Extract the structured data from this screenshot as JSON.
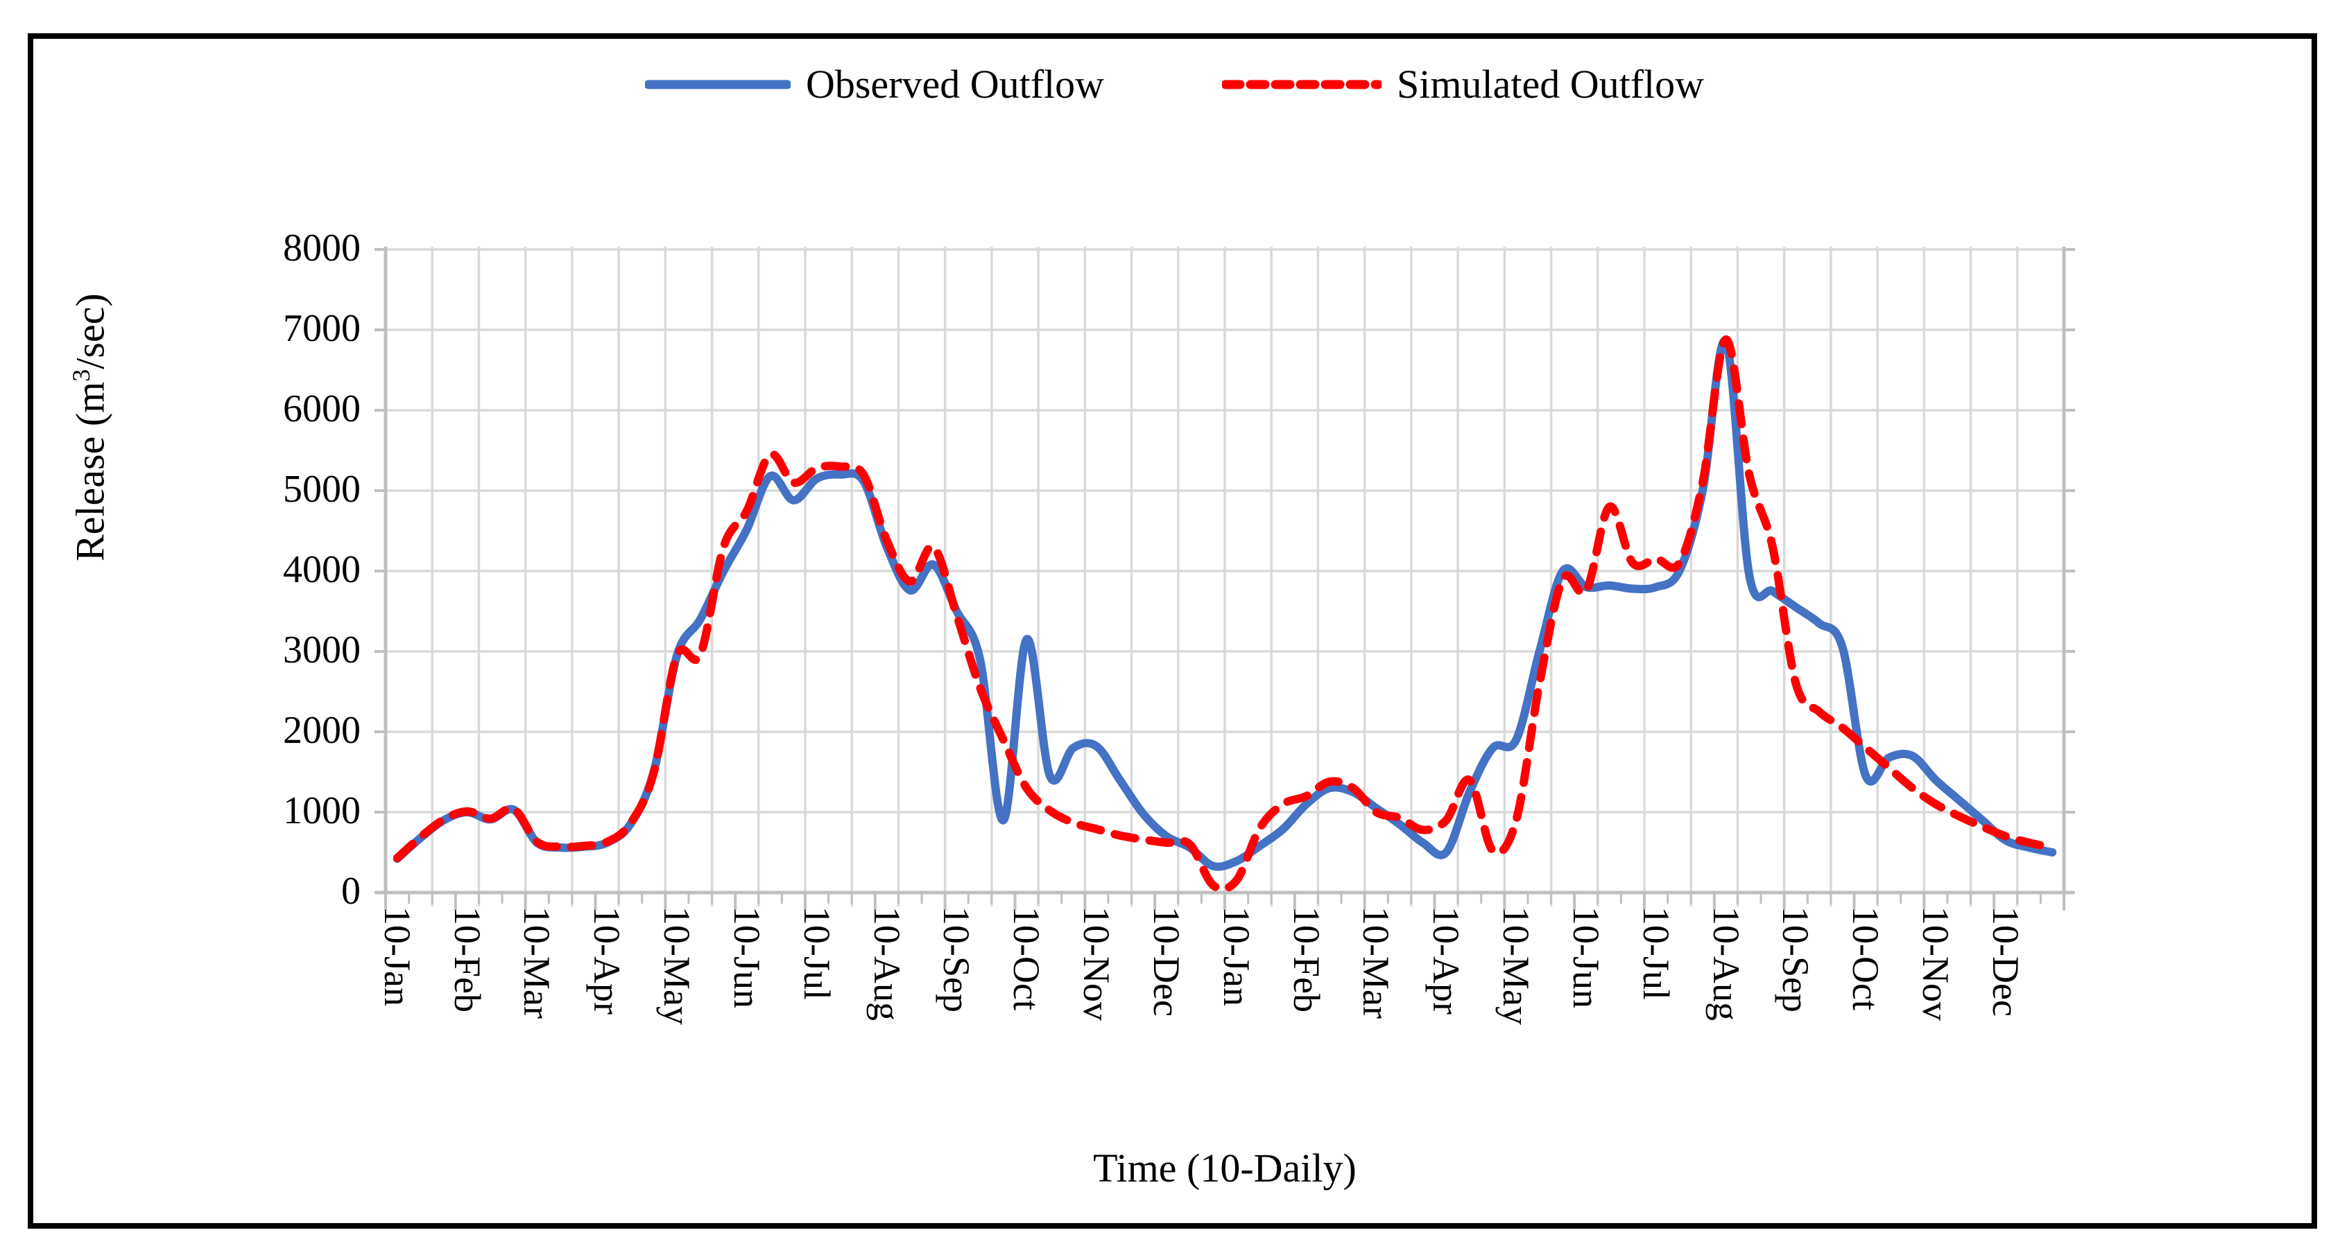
{
  "figure": {
    "border_color": "#000000",
    "background": "#ffffff"
  },
  "legend": {
    "items": [
      {
        "label": "Observed Outflow",
        "color": "#4472C4",
        "style": "solid"
      },
      {
        "label": "Simulated Outflow",
        "color": "#FF0000",
        "style": "dashed"
      }
    ]
  },
  "axis_titles": {
    "y_prefix": "Release (m",
    "y_sup": "3",
    "y_suffix": "/sec)",
    "x": "Time (10-Daily)"
  },
  "colors": {
    "observed": "#4472C4",
    "simulated": "#FF0000",
    "gridline": "#D9D9D9",
    "axis": "#BFBFBF",
    "tick": "#BFBFBF",
    "text": "#000000"
  },
  "chart_data": {
    "type": "line",
    "title": "",
    "xlabel": "Time (10-Daily)",
    "ylabel": "Release (m3/sec)",
    "x_unit": "10-daily time steps (3 per month, 2 years)",
    "points_per_month": 3,
    "label_every": 3,
    "grid_every": 2,
    "ylim": [
      0,
      8000
    ],
    "y_ticks": [
      0,
      1000,
      2000,
      3000,
      4000,
      5000,
      6000,
      7000,
      8000
    ],
    "x_tick_labels": [
      "10-Jan",
      "10-Feb",
      "10-Mar",
      "10-Apr",
      "10-May",
      "10-Jun",
      "10-Jul",
      "10-Aug",
      "10-Sep",
      "10-Oct",
      "10-Nov",
      "10-Dec",
      "10-Jan",
      "10-Feb",
      "10-Mar",
      "10-Apr",
      "10-May",
      "10-Jun",
      "10-Jul",
      "10-Aug",
      "10-Sep",
      "10-Oct",
      "10-Nov",
      "10-Dec"
    ],
    "legend_position": "top-center",
    "grid": "on",
    "series": [
      {
        "name": "Observed Outflow",
        "color": "#4472C4",
        "dash": "solid",
        "values": [
          420,
          680,
          900,
          1000,
          910,
          1030,
          620,
          560,
          570,
          620,
          850,
          1500,
          2950,
          3400,
          4000,
          4520,
          5180,
          4880,
          5150,
          5200,
          5120,
          4300,
          3760,
          4080,
          3500,
          2900,
          900,
          3150,
          1450,
          1800,
          1820,
          1400,
          980,
          700,
          560,
          330,
          390,
          580,
          790,
          1100,
          1300,
          1250,
          1050,
          850,
          620,
          500,
          1250,
          1800,
          1900,
          3000,
          4000,
          3800,
          3820,
          3780,
          3800,
          4000,
          5000,
          6850,
          3950,
          3750,
          3550,
          3350,
          3050,
          1450,
          1680,
          1700,
          1400,
          1150,
          900,
          650,
          560,
          500
        ]
      },
      {
        "name": "Simulated Outflow",
        "color": "#FF0000",
        "dash": "dashed",
        "values": [
          430,
          690,
          910,
          1010,
          920,
          1040,
          630,
          570,
          580,
          630,
          860,
          1490,
          2950,
          2960,
          4300,
          4750,
          5450,
          5100,
          5280,
          5300,
          5200,
          4380,
          3870,
          4300,
          3450,
          2550,
          1900,
          1300,
          1020,
          870,
          790,
          710,
          660,
          620,
          600,
          90,
          150,
          800,
          1100,
          1200,
          1380,
          1300,
          1000,
          930,
          780,
          900,
          1400,
          520,
          900,
          2600,
          3900,
          3750,
          4800,
          4100,
          4150,
          4100,
          5100,
          6880,
          5200,
          4300,
          2600,
          2250,
          2050,
          1800,
          1550,
          1300,
          1100,
          950,
          820,
          700,
          620,
          560
        ]
      }
    ]
  }
}
